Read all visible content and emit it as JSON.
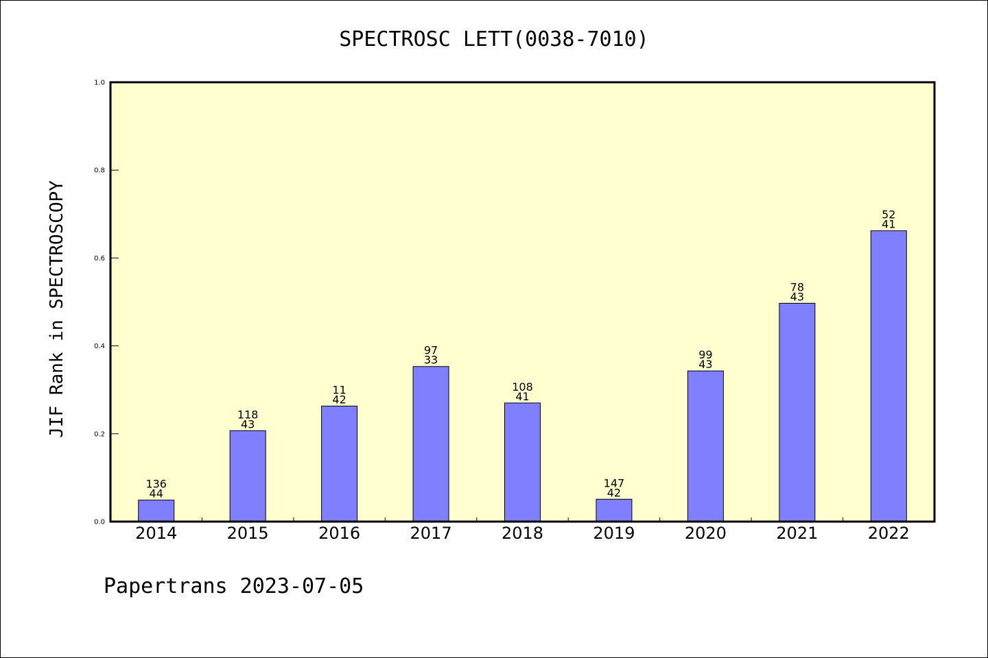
{
  "footer": "Papertrans 2023-07-05",
  "colors": {
    "plot_background": "#FFFFD0",
    "bar_fill": "#8080FF",
    "axis": "#000000"
  },
  "chart_data": {
    "type": "bar",
    "title": "SPECTROSC LETT(0038-7010)",
    "xlabel": "",
    "ylabel": "JIF Rank in SPECTROSCOPY",
    "ylim": [
      0,
      1.0
    ],
    "yticks": [
      "0.0",
      "0.2",
      "0.4",
      "0.6",
      "0.8",
      "1.0"
    ],
    "grid": false,
    "categories": [
      "2014",
      "2015",
      "2016",
      "2017",
      "2018",
      "2019",
      "2020",
      "2021",
      "2022"
    ],
    "values": [
      0.049,
      0.207,
      0.263,
      0.353,
      0.27,
      0.051,
      0.343,
      0.497,
      0.662
    ],
    "bar_labels": [
      [
        "136",
        "44"
      ],
      [
        "118",
        "43"
      ],
      [
        "11",
        "42"
      ],
      [
        "97",
        "33"
      ],
      [
        "108",
        "41"
      ],
      [
        "147",
        "42"
      ],
      [
        "99",
        "43"
      ],
      [
        "78",
        "43"
      ],
      [
        "52",
        "41"
      ]
    ]
  }
}
